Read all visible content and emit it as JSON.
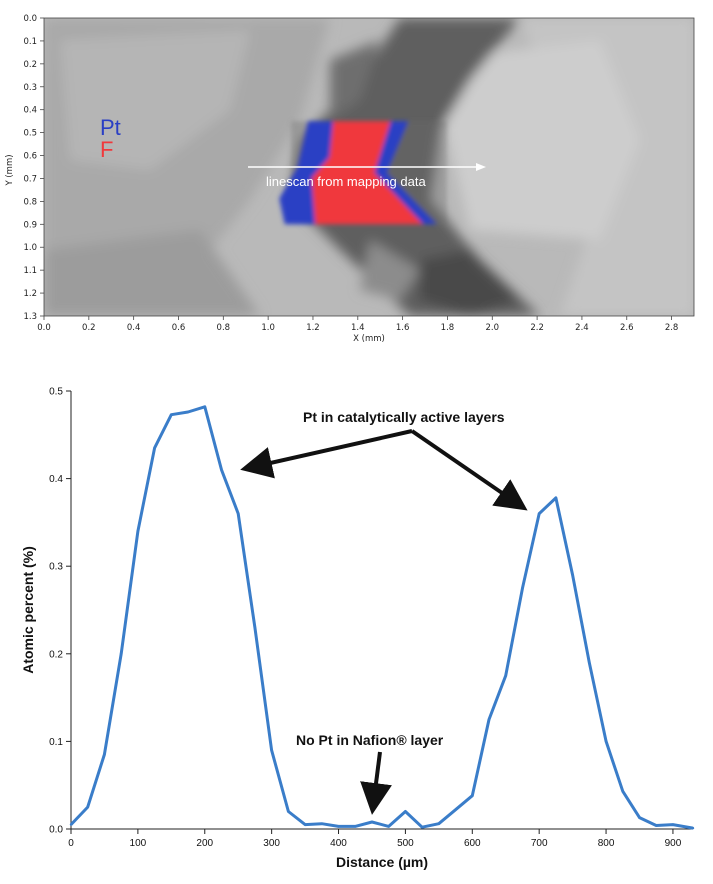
{
  "chart_data": [
    {
      "type": "heatmap",
      "xlabel": "X (mm)",
      "ylabel": "Y (mm)",
      "xlim": [
        0.0,
        2.9
      ],
      "ylim": [
        0.0,
        1.3
      ],
      "x_ticks": [
        "0.0",
        "0.2",
        "0.4",
        "0.6",
        "0.8",
        "1.0",
        "1.2",
        "1.4",
        "1.6",
        "1.8",
        "2.0",
        "2.2",
        "2.4",
        "2.6",
        "2.8"
      ],
      "y_ticks": [
        "0.0",
        "0.1",
        "0.2",
        "0.3",
        "0.4",
        "0.5",
        "0.6",
        "0.7",
        "0.8",
        "0.9",
        "1.0",
        "1.1",
        "1.2",
        "1.3"
      ],
      "legend": [
        {
          "label": "Pt",
          "color": "#2a3fc4"
        },
        {
          "label": "F",
          "color": "#f0393c"
        }
      ],
      "annotation": "linescan from mapping data",
      "map_region": {
        "x": [
          1.05,
          1.85
        ],
        "y": [
          0.45,
          0.9
        ]
      }
    },
    {
      "type": "line",
      "xlabel": "Distance (µm)",
      "ylabel": "Atomic percent (%)",
      "xlim": [
        0,
        930
      ],
      "ylim": [
        0,
        0.5
      ],
      "x_ticks": [
        "0",
        "100",
        "200",
        "300",
        "400",
        "500",
        "600",
        "700",
        "800",
        "900"
      ],
      "y_ticks": [
        "0.0",
        "0.1",
        "0.2",
        "0.3",
        "0.4",
        "0.5"
      ],
      "color": "#3a7dc9",
      "x": [
        0,
        25,
        50,
        75,
        100,
        125,
        150,
        175,
        200,
        225,
        250,
        275,
        300,
        325,
        350,
        375,
        400,
        425,
        450,
        475,
        500,
        525,
        550,
        575,
        600,
        625,
        650,
        675,
        700,
        725,
        750,
        775,
        800,
        825,
        850,
        875,
        900,
        930
      ],
      "values": [
        0.005,
        0.025,
        0.085,
        0.2,
        0.34,
        0.435,
        0.473,
        0.476,
        0.482,
        0.41,
        0.36,
        0.23,
        0.09,
        0.02,
        0.005,
        0.006,
        0.003,
        0.003,
        0.008,
        0.003,
        0.02,
        0.002,
        0.006,
        0.022,
        0.038,
        0.125,
        0.175,
        0.275,
        0.36,
        0.378,
        0.29,
        0.19,
        0.1,
        0.043,
        0.013,
        0.004,
        0.005,
        0.001
      ],
      "annotations": [
        {
          "text": "Pt in catalytically active layers"
        },
        {
          "text": "No Pt in Nafion® layer"
        }
      ]
    }
  ]
}
